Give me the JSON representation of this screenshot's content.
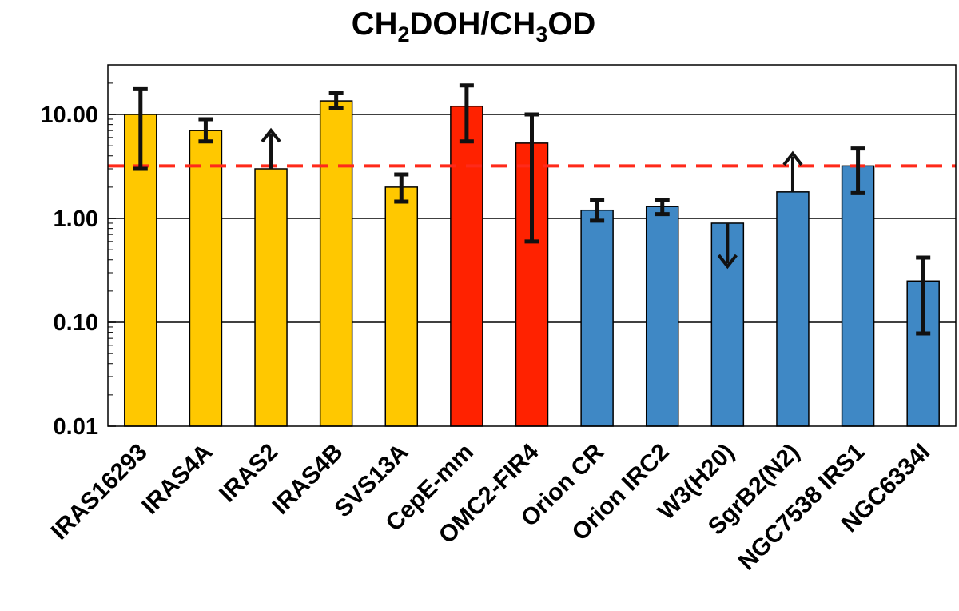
{
  "chart_data": {
    "type": "bar",
    "title": "CH2DOH/CH3OD",
    "title_parts": [
      "CH",
      "2",
      "DOH/CH",
      "3",
      "OD"
    ],
    "yscale": "log",
    "ylim": [
      0.01,
      30
    ],
    "yticks": [
      0.01,
      0.1,
      1,
      10
    ],
    "ytick_labels": [
      "0.01",
      "0.10",
      "1.00",
      "10.00"
    ],
    "grid": true,
    "reference_line": {
      "value": 3.2,
      "color": "#ff2a1a",
      "style": "dashed"
    },
    "colors": {
      "yellow": "#ffc800",
      "red": "#ff2200",
      "blue": "#3f88c5"
    },
    "bars": [
      {
        "label": "IRAS16293",
        "value": 10.0,
        "err_low": 3.0,
        "err_high": 17.5,
        "color": "yellow",
        "limit": "none"
      },
      {
        "label": "IRAS4A",
        "value": 7.0,
        "err_low": 5.5,
        "err_high": 9.0,
        "color": "yellow",
        "limit": "none"
      },
      {
        "label": "IRAS2",
        "value": 3.0,
        "err_low": null,
        "err_high": null,
        "color": "yellow",
        "limit": "lower"
      },
      {
        "label": "IRAS4B",
        "value": 13.5,
        "err_low": 11.5,
        "err_high": 16.0,
        "color": "yellow",
        "limit": "none"
      },
      {
        "label": "SVS13A",
        "value": 2.0,
        "err_low": 1.45,
        "err_high": 2.65,
        "color": "yellow",
        "limit": "none"
      },
      {
        "label": "CepE-mm",
        "value": 12.0,
        "err_low": 5.5,
        "err_high": 19.0,
        "color": "red",
        "limit": "none"
      },
      {
        "label": "OMC2-FIR4",
        "value": 5.3,
        "err_low": 0.6,
        "err_high": 10.0,
        "color": "red",
        "limit": "none"
      },
      {
        "label": "Orion CR",
        "value": 1.2,
        "err_low": 0.95,
        "err_high": 1.5,
        "color": "blue",
        "limit": "none"
      },
      {
        "label": "Orion IRC2",
        "value": 1.3,
        "err_low": 1.1,
        "err_high": 1.5,
        "color": "blue",
        "limit": "none"
      },
      {
        "label": "W3(H20)",
        "value": 0.9,
        "err_low": null,
        "err_high": null,
        "color": "blue",
        "limit": "upper"
      },
      {
        "label": "SgrB2(N2)",
        "value": 1.8,
        "err_low": null,
        "err_high": null,
        "color": "blue",
        "limit": "lower"
      },
      {
        "label": "NGC7538 IRS1",
        "value": 3.2,
        "err_low": 1.75,
        "err_high": 4.7,
        "color": "blue",
        "limit": "none"
      },
      {
        "label": "NGC6334I",
        "value": 0.25,
        "err_low": 0.078,
        "err_high": 0.42,
        "color": "blue",
        "limit": "none"
      }
    ]
  }
}
